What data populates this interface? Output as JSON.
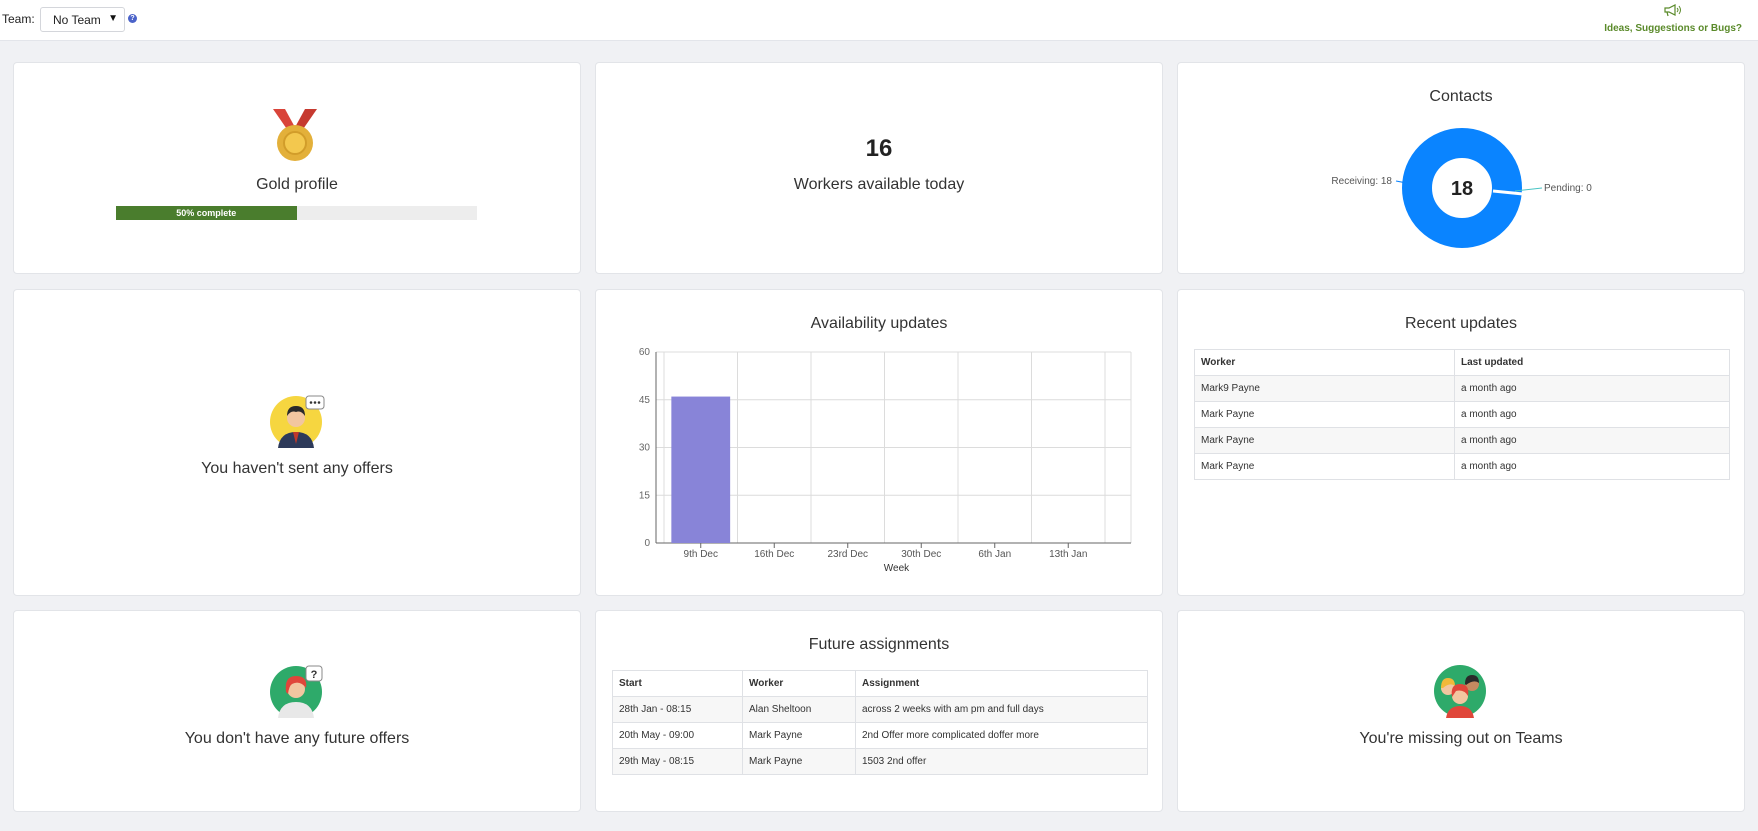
{
  "topbar": {
    "team_label": "Team:",
    "team_value": "No Team",
    "help_icon": "question-circle-icon",
    "feedback_icon": "megaphone-icon",
    "feedback_label": "Ideas, Suggestions or Bugs?"
  },
  "profile": {
    "medal_icon": "gold-medal-icon",
    "title": "Gold profile",
    "progress_label": "50% complete",
    "progress_fraction": 0.5
  },
  "workers": {
    "count": "16",
    "label": "Workers available today"
  },
  "contacts": {
    "title": "Contacts",
    "total": "18",
    "receiving_label": "Receiving: 18",
    "pending_label": "Pending: 0"
  },
  "offers": {
    "avatar_icon": "agent-avatar-icon",
    "message": "You haven't sent any offers"
  },
  "availability": {
    "title": "Availability updates"
  },
  "chart_data": {
    "type": "bar",
    "title": "Availability updates",
    "categories": [
      "9th Dec",
      "16th Dec",
      "23rd Dec",
      "30th Dec",
      "6th Jan",
      "13th Jan"
    ],
    "values": [
      46,
      0,
      0,
      0,
      0,
      0
    ],
    "xlabel": "Week",
    "ylabel": "",
    "ylim": [
      0,
      60
    ],
    "yticks": [
      "0",
      "15",
      "30",
      "45",
      "60"
    ],
    "grid": true,
    "colors": {
      "bar": "#8884d8"
    }
  },
  "recent": {
    "title": "Recent updates",
    "headers": [
      "Worker",
      "Last updated"
    ],
    "rows": [
      [
        "Mark9 Payne",
        "a month ago"
      ],
      [
        "Mark Payne",
        "a month ago"
      ],
      [
        "Mark Payne",
        "a month ago"
      ],
      [
        "Mark Payne",
        "a month ago"
      ]
    ]
  },
  "future_offers": {
    "avatar_icon": "question-avatar-icon",
    "message": "You don't have any future offers"
  },
  "assignments": {
    "title": "Future assignments",
    "headers": [
      "Start",
      "Worker",
      "Assignment"
    ],
    "rows": [
      [
        "28th Jan - 08:15",
        "Alan Sheltoon",
        "across 2 weeks with am pm and full days"
      ],
      [
        "20th May - 09:00",
        "Mark Payne",
        "2nd Offer more complicated doffer more"
      ],
      [
        "29th May - 08:15",
        "Mark Payne",
        "1503 2nd offer"
      ]
    ]
  },
  "teams": {
    "avatar_icon": "team-avatar-icon",
    "message": "You're missing out on Teams"
  },
  "colors": {
    "accent_blue": "#0a84ff",
    "progress_green": "#4a7d2d",
    "bar_purple": "#8884d8",
    "feedback_green": "#5a8a2a"
  }
}
